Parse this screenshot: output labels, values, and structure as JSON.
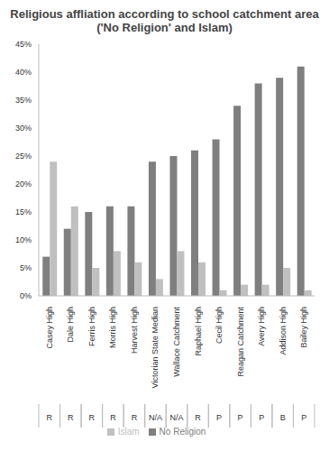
{
  "chart_data": {
    "type": "bar",
    "title": "Religious affliation according to school catchment area ('No Religion' and Islam)",
    "categories": [
      "Casey High",
      "Dale High",
      "Ferris High",
      "Morris High",
      "Harvest High",
      "Victorian State Median",
      "Wallace Catchment",
      "Raphael High",
      "Cecil High",
      "Reagan Catchment",
      "Avery High",
      "Addison High",
      "Bailey High"
    ],
    "secondary_categories": [
      "R",
      "R",
      "R",
      "R",
      "R",
      "N/A",
      "N/A",
      "R",
      "P",
      "P",
      "P",
      "B",
      "P"
    ],
    "series": [
      {
        "name": "No Religion",
        "color": "#7f7f7f",
        "values": [
          7,
          12,
          15,
          16,
          16,
          24,
          25,
          26,
          28,
          34,
          38,
          39,
          41
        ]
      },
      {
        "name": "Islam",
        "color": "#c0c0c0",
        "values": [
          24,
          16,
          5,
          8,
          6,
          3,
          8,
          6,
          1,
          2,
          2,
          5,
          1
        ]
      }
    ],
    "ylim": [
      0,
      45
    ],
    "yticks": [
      {
        "value": 0,
        "label": "0%"
      },
      {
        "value": 5,
        "label": "5%"
      },
      {
        "value": 10,
        "label": "10%"
      },
      {
        "value": 15,
        "label": "15%"
      },
      {
        "value": 20,
        "label": "20%"
      },
      {
        "value": 25,
        "label": "25%"
      },
      {
        "value": 30,
        "label": "30%"
      },
      {
        "value": 35,
        "label": "35%"
      },
      {
        "value": 40,
        "label": "40%"
      },
      {
        "value": 45,
        "label": "45%"
      }
    ],
    "grid": false,
    "legend": "bottom"
  }
}
